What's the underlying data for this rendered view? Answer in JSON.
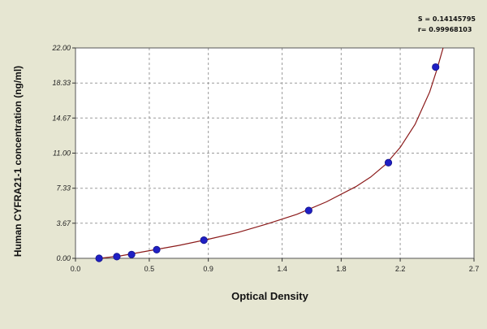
{
  "stats": {
    "s": "S = 0.14145795",
    "r": "r= 0.99968103"
  },
  "colors": {
    "background": "#e6e6d2",
    "plot_area": "#ffffff",
    "curve": "#8b1a1a",
    "points": "#1f1fc4",
    "grid": "#9a9a9a"
  },
  "chart_data": {
    "type": "scatter",
    "xlabel": "Optical Density",
    "ylabel": "Human CYFRA21-1 concentration (ng/ml)",
    "xlim": [
      0,
      2.7
    ],
    "ylim": [
      0,
      22
    ],
    "xticks": [
      0.0,
      0.5,
      0.9,
      1.4,
      1.8,
      2.2,
      2.7
    ],
    "xtick_labels": [
      "0.0",
      "0.5",
      "0.9",
      "1.4",
      "1.8",
      "2.2",
      "2.7"
    ],
    "yticks": [
      0,
      3.67,
      7.33,
      11,
      14.67,
      18.33,
      22
    ],
    "ytick_labels": [
      "0.00",
      "3.67",
      "7.33",
      "11.00",
      "14.67",
      "18.33",
      "22.00"
    ],
    "grid": true,
    "series": [
      {
        "points": [
          {
            "x": 0.16,
            "y": 0.0
          },
          {
            "x": 0.28,
            "y": 0.18
          },
          {
            "x": 0.38,
            "y": 0.4
          },
          {
            "x": 0.55,
            "y": 0.9
          },
          {
            "x": 0.87,
            "y": 1.9
          },
          {
            "x": 1.58,
            "y": 5.0
          },
          {
            "x": 2.12,
            "y": 10.0
          },
          {
            "x": 2.44,
            "y": 20.0
          }
        ]
      }
    ],
    "fit_curve": [
      {
        "x": 0.16,
        "y": 0.0
      },
      {
        "x": 0.3,
        "y": 0.25
      },
      {
        "x": 0.5,
        "y": 0.8
      },
      {
        "x": 0.7,
        "y": 1.35
      },
      {
        "x": 0.9,
        "y": 2.0
      },
      {
        "x": 1.1,
        "y": 2.7
      },
      {
        "x": 1.3,
        "y": 3.6
      },
      {
        "x": 1.5,
        "y": 4.6
      },
      {
        "x": 1.7,
        "y": 5.9
      },
      {
        "x": 1.9,
        "y": 7.5
      },
      {
        "x": 2.0,
        "y": 8.5
      },
      {
        "x": 2.1,
        "y": 9.8
      },
      {
        "x": 2.2,
        "y": 11.6
      },
      {
        "x": 2.3,
        "y": 14.0
      },
      {
        "x": 2.4,
        "y": 17.4
      },
      {
        "x": 2.45,
        "y": 19.8
      },
      {
        "x": 2.5,
        "y": 22.5
      }
    ]
  }
}
